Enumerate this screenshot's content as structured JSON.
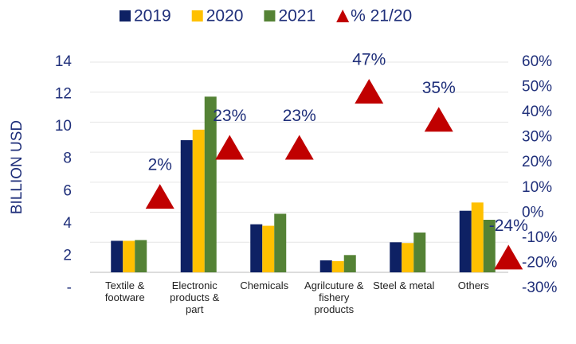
{
  "chart_data": {
    "type": "bar",
    "y_label": "BILLION USD",
    "categories": [
      "Textile & footware",
      "Electronic products & part",
      "Chemicals",
      "Agrilcuture & fishery products",
      "Steel & metal",
      "Others"
    ],
    "series": [
      {
        "name": "2019",
        "color": "#0e2164",
        "values": [
          2.1,
          8.8,
          3.2,
          0.8,
          2.0,
          4.1
        ]
      },
      {
        "name": "2020",
        "color": "#ffc000",
        "values": [
          2.1,
          9.5,
          3.1,
          0.75,
          1.95,
          4.65
        ]
      },
      {
        "name": "2021",
        "color": "#548235",
        "values": [
          2.15,
          11.7,
          3.9,
          1.15,
          2.65,
          3.5
        ]
      },
      {
        "name": "% 21/20",
        "color": "#c00000",
        "axis": "y2",
        "type": "scatter",
        "marker": "triangle",
        "values": [
          2,
          23,
          23,
          47,
          35,
          -24
        ],
        "value_labels": [
          "2%",
          "23%",
          "23%",
          "47%",
          "35%",
          "-24%"
        ]
      }
    ],
    "ylim": [
      0,
      14
    ],
    "yticks": [
      {
        "value": 0,
        "label": "-"
      },
      2,
      4,
      6,
      8,
      10,
      12,
      14
    ],
    "y2lim": [
      -30,
      60
    ],
    "y2ticks": [
      {
        "value": -30,
        "label": "-30%"
      },
      {
        "value": -20,
        "label": "-20%"
      },
      {
        "value": -10,
        "label": "-10%"
      },
      {
        "value": 0,
        "label": "0%"
      },
      {
        "value": 10,
        "label": "10%"
      },
      {
        "value": 20,
        "label": "20%"
      },
      {
        "value": 30,
        "label": "30%"
      },
      {
        "value": 40,
        "label": "40%"
      },
      {
        "value": 50,
        "label": "50%"
      },
      {
        "value": 60,
        "label": "60%"
      }
    ],
    "grid": true,
    "legend": "top"
  }
}
